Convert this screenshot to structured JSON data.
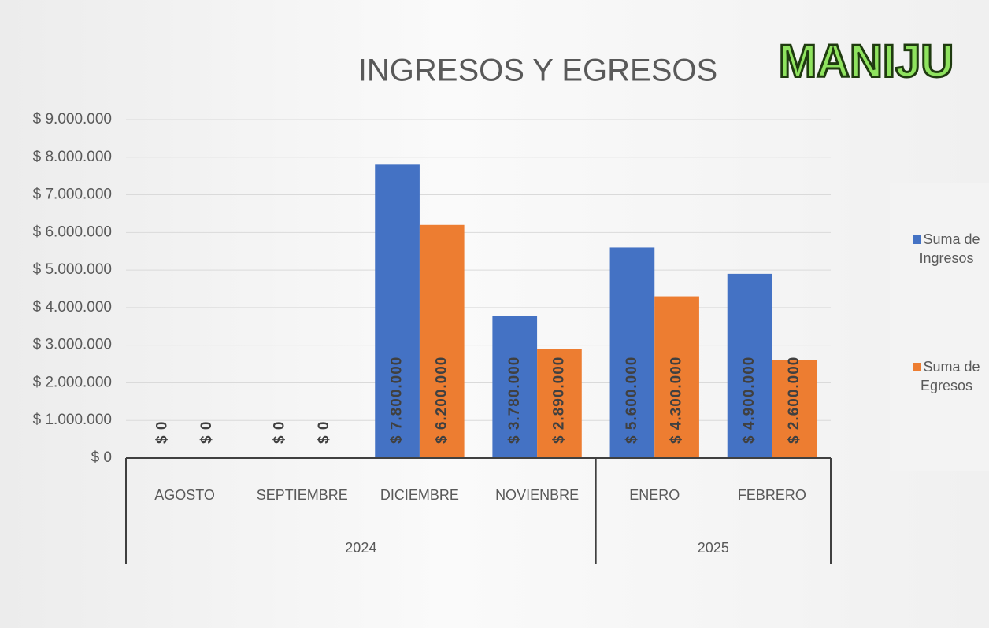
{
  "chart_data": {
    "type": "bar",
    "title": "INGRESOS Y EGRESOS",
    "logo": "MANIJU",
    "groups": [
      {
        "name": "2024",
        "categories": [
          "AGOSTO",
          "SEPTIEMBRE",
          "DICIEMBRE",
          "NOVIENBRE"
        ]
      },
      {
        "name": "2025",
        "categories": [
          "ENERO",
          "FEBRERO"
        ]
      }
    ],
    "series": [
      {
        "name": "Suma de Ingresos",
        "color": "#4472c4",
        "values": [
          0,
          0,
          7800000,
          3780000,
          5600000,
          4900000
        ],
        "value_labels": [
          "$ 0",
          "$ 0",
          "$ 7.800.000",
          "$ 3.780.000",
          "$ 5.600.000",
          "$ 4.900.000"
        ]
      },
      {
        "name": "Suma de Egresos",
        "color": "#ed7d31",
        "values": [
          0,
          0,
          6200000,
          2890000,
          4300000,
          2600000
        ],
        "value_labels": [
          "$ 0",
          "$ 0",
          "$ 6.200.000",
          "$ 2.890.000",
          "$ 4.300.000",
          "$ 2.600.000"
        ]
      }
    ],
    "ylim": [
      0,
      9000000
    ],
    "yticks": [
      {
        "value": 0,
        "label": "$ 0"
      },
      {
        "value": 1000000,
        "label": "$ 1.000.000"
      },
      {
        "value": 2000000,
        "label": "$ 2.000.000"
      },
      {
        "value": 3000000,
        "label": "$ 3.000.000"
      },
      {
        "value": 4000000,
        "label": "$ 4.000.000"
      },
      {
        "value": 5000000,
        "label": "$ 5.000.000"
      },
      {
        "value": 6000000,
        "label": "$ 6.000.000"
      },
      {
        "value": 7000000,
        "label": "$ 7.000.000"
      },
      {
        "value": 8000000,
        "label": "$ 8.000.000"
      },
      {
        "value": 9000000,
        "label": "$ 9.000.000"
      }
    ],
    "grid": true,
    "legend": "right"
  }
}
